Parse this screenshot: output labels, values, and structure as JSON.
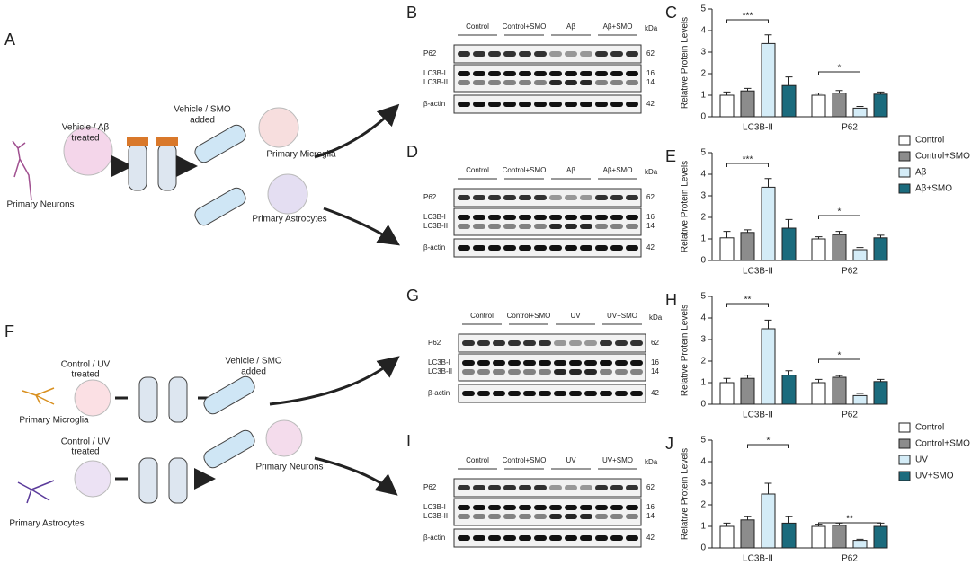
{
  "panel_labels": [
    "A",
    "B",
    "C",
    "D",
    "E",
    "F",
    "G",
    "H",
    "I",
    "J"
  ],
  "schematic_a": {
    "source": "Primary Neurons",
    "treatment": [
      "Vehicle / Aβ",
      "treated"
    ],
    "addition": [
      "Vehicle / SMO",
      "added"
    ],
    "targets": [
      "Primary Microglia",
      "Primary Astrocytes"
    ]
  },
  "schematic_f": {
    "sources": [
      "Primary Microglia",
      "Primary Astrocytes"
    ],
    "treatments": [
      [
        "Control / UV",
        "treated"
      ],
      [
        "Control / UV",
        "treated"
      ]
    ],
    "addition": [
      "Vehicle / SMO",
      "added"
    ],
    "target": "Primary Neurons"
  },
  "blots": [
    {
      "groups": [
        "Control",
        "Control+SMO",
        "Aβ",
        "Aβ+SMO"
      ],
      "unit": "kDa",
      "rows": [
        "P62",
        "LC3B-I",
        "LC3B-II",
        "β-actin"
      ],
      "kda": [
        62,
        16,
        14,
        42
      ]
    },
    {
      "groups": [
        "Control",
        "Control+SMO",
        "Aβ",
        "Aβ+SMO"
      ],
      "unit": "kDa",
      "rows": [
        "P62",
        "LC3B-I",
        "LC3B-II",
        "β-actin"
      ],
      "kda": [
        62,
        16,
        14,
        42
      ]
    },
    {
      "groups": [
        "Control",
        "Control+SMO",
        "UV",
        "UV+SMO"
      ],
      "unit": "kDa",
      "rows": [
        "P62",
        "LC3B-I",
        "LC3B-II",
        "β-actin"
      ],
      "kda": [
        62,
        16,
        14,
        42
      ]
    },
    {
      "groups": [
        "Control",
        "Control+SMO",
        "UV",
        "UV+SMO"
      ],
      "unit": "kDa",
      "rows": [
        "P62",
        "LC3B-I",
        "LC3B-II",
        "β-actin"
      ],
      "kda": [
        62,
        16,
        14,
        42
      ]
    }
  ],
  "chart_data": [
    {
      "type": "bar",
      "y_label": "Relative Protein Levels",
      "categories": [
        "LC3B-II",
        "P62"
      ],
      "ylim": [
        0,
        5
      ],
      "yticks": [
        0,
        1,
        2,
        3,
        4,
        5
      ],
      "legend": false,
      "annotations": [
        "***",
        "*"
      ],
      "series": [
        {
          "name": "Control",
          "color": "#ffffff",
          "values": [
            1.0,
            1.0
          ],
          "errors": [
            0.15,
            0.1
          ]
        },
        {
          "name": "Control+SMO",
          "color": "#8c8c8c",
          "values": [
            1.2,
            1.1
          ],
          "errors": [
            0.12,
            0.12
          ]
        },
        {
          "name": "Aβ",
          "color": "#d4ecf7",
          "values": [
            3.4,
            0.4
          ],
          "errors": [
            0.4,
            0.08
          ]
        },
        {
          "name": "Aβ+SMO",
          "color": "#1b6b7d",
          "values": [
            1.45,
            1.05
          ],
          "errors": [
            0.4,
            0.1
          ]
        }
      ]
    },
    {
      "type": "bar",
      "y_label": "Relative Protein Levels",
      "categories": [
        "LC3B-II",
        "P62"
      ],
      "ylim": [
        0,
        5
      ],
      "yticks": [
        0,
        1,
        2,
        3,
        4,
        5
      ],
      "legend": true,
      "annotations": [
        "***",
        "*"
      ],
      "series": [
        {
          "name": "Control",
          "color": "#ffffff",
          "values": [
            1.05,
            1.0
          ],
          "errors": [
            0.3,
            0.1
          ]
        },
        {
          "name": "Control+SMO",
          "color": "#8c8c8c",
          "values": [
            1.3,
            1.2
          ],
          "errors": [
            0.12,
            0.15
          ]
        },
        {
          "name": "Aβ",
          "color": "#d4ecf7",
          "values": [
            3.4,
            0.5
          ],
          "errors": [
            0.4,
            0.1
          ]
        },
        {
          "name": "Aβ+SMO",
          "color": "#1b6b7d",
          "values": [
            1.5,
            1.05
          ],
          "errors": [
            0.4,
            0.12
          ]
        }
      ]
    },
    {
      "type": "bar",
      "y_label": "Relative Protein Levels",
      "categories": [
        "LC3B-II",
        "P62"
      ],
      "ylim": [
        0,
        5
      ],
      "yticks": [
        0,
        1,
        2,
        3,
        4,
        5
      ],
      "legend": false,
      "annotations": [
        "**",
        "*"
      ],
      "series": [
        {
          "name": "Control",
          "color": "#ffffff",
          "values": [
            1.0,
            1.0
          ],
          "errors": [
            0.2,
            0.15
          ]
        },
        {
          "name": "Control+SMO",
          "color": "#8c8c8c",
          "values": [
            1.2,
            1.25
          ],
          "errors": [
            0.15,
            0.08
          ]
        },
        {
          "name": "UV",
          "color": "#d4ecf7",
          "values": [
            3.5,
            0.4
          ],
          "errors": [
            0.4,
            0.1
          ]
        },
        {
          "name": "UV+SMO",
          "color": "#1b6b7d",
          "values": [
            1.35,
            1.05
          ],
          "errors": [
            0.2,
            0.1
          ]
        }
      ]
    },
    {
      "type": "bar",
      "y_label": "Relative Protein Levels",
      "categories": [
        "LC3B-II",
        "P62"
      ],
      "ylim": [
        0,
        5
      ],
      "yticks": [
        0,
        1,
        2,
        3,
        4,
        5
      ],
      "legend": true,
      "annotations": [
        "*",
        "**"
      ],
      "series": [
        {
          "name": "Control",
          "color": "#ffffff",
          "values": [
            1.0,
            1.0
          ],
          "errors": [
            0.15,
            0.1
          ]
        },
        {
          "name": "Control+SMO",
          "color": "#8c8c8c",
          "values": [
            1.3,
            1.05
          ],
          "errors": [
            0.15,
            0.1
          ]
        },
        {
          "name": "UV",
          "color": "#d4ecf7",
          "values": [
            2.5,
            0.35
          ],
          "errors": [
            0.5,
            0.05
          ]
        },
        {
          "name": "UV+SMO",
          "color": "#1b6b7d",
          "values": [
            1.15,
            1.0
          ],
          "errors": [
            0.3,
            0.15
          ]
        }
      ]
    }
  ]
}
